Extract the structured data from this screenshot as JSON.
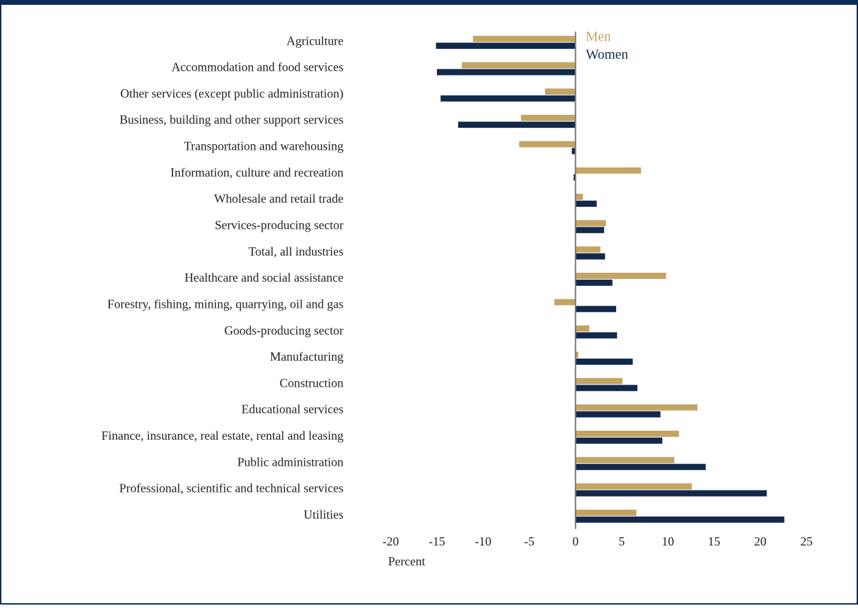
{
  "chart_data": {
    "type": "bar",
    "orientation": "horizontal",
    "xlabel": "Percent",
    "categories": [
      "Agriculture",
      "Accommodation and food services",
      "Other services (except public administration)",
      "Business, building and other support services",
      "Transportation and warehousing",
      "Information, culture and recreation",
      "Wholesale and retail trade",
      "Services-producing sector",
      "Total, all industries",
      "Healthcare and social assistance",
      "Forestry, fishing, mining, quarrying, oil and gas",
      "Goods-producing sector",
      "Manufacturing",
      "Construction",
      "Educational services",
      "Finance, insurance, real estate, rental and leasing",
      "Public administration",
      "Professional, scientific and technical services",
      "Utilities"
    ],
    "series": [
      {
        "name": "Men",
        "color": "#c4a463",
        "values": [
          -11.1,
          -12.3,
          -3.3,
          -5.9,
          -6.1,
          7.1,
          0.8,
          3.3,
          2.7,
          9.8,
          -2.3,
          1.5,
          0.3,
          5.1,
          13.2,
          11.2,
          10.7,
          12.6,
          6.6
        ]
      },
      {
        "name": "Women",
        "color": "#13294b",
        "values": [
          -15.1,
          -15.0,
          -14.6,
          -12.7,
          -0.4,
          -0.2,
          2.3,
          3.1,
          3.2,
          4.0,
          4.4,
          4.5,
          6.2,
          6.7,
          9.2,
          9.4,
          14.1,
          20.7,
          22.6
        ]
      }
    ],
    "xlim": [
      -20.5,
      25
    ],
    "xticks": [
      -20,
      -15,
      -10,
      -5,
      0,
      5,
      10,
      15,
      20,
      25
    ],
    "legend": "top"
  }
}
